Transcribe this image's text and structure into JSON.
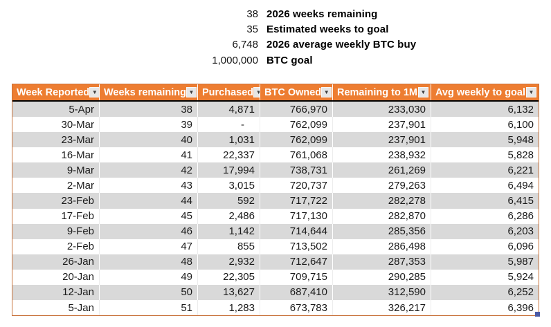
{
  "summary": {
    "rows": [
      {
        "value": "38",
        "label": "2026 weeks remaining"
      },
      {
        "value": "35",
        "label": "Estimated weeks to goal"
      },
      {
        "value": "6,748",
        "label": "2026 average weekly BTC buy"
      },
      {
        "value": "1,000,000",
        "label": "BTC goal"
      }
    ]
  },
  "table": {
    "filter_icon": "▼",
    "columns": [
      {
        "label": "Week Reported"
      },
      {
        "label": "Weeks remaining"
      },
      {
        "label": "Purchased"
      },
      {
        "label": "BTC Owned"
      },
      {
        "label": "Remaining to 1M"
      },
      {
        "label": "Avg weekly to goal"
      }
    ],
    "rows": [
      [
        "5-Apr",
        "38",
        "4,871",
        "766,970",
        "233,030",
        "6,132"
      ],
      [
        "30-Mar",
        "39",
        "-",
        "762,099",
        "237,901",
        "6,100"
      ],
      [
        "23-Mar",
        "40",
        "1,031",
        "762,099",
        "237,901",
        "5,948"
      ],
      [
        "16-Mar",
        "41",
        "22,337",
        "761,068",
        "238,932",
        "5,828"
      ],
      [
        "9-Mar",
        "42",
        "17,994",
        "738,731",
        "261,269",
        "6,221"
      ],
      [
        "2-Mar",
        "43",
        "3,015",
        "720,737",
        "279,263",
        "6,494"
      ],
      [
        "23-Feb",
        "44",
        "592",
        "717,722",
        "282,278",
        "6,415"
      ],
      [
        "17-Feb",
        "45",
        "2,486",
        "717,130",
        "282,870",
        "6,286"
      ],
      [
        "9-Feb",
        "46",
        "1,142",
        "714,644",
        "285,356",
        "6,203"
      ],
      [
        "2-Feb",
        "47",
        "855",
        "713,502",
        "286,498",
        "6,096"
      ],
      [
        "26-Jan",
        "48",
        "2,932",
        "712,647",
        "287,353",
        "5,987"
      ],
      [
        "20-Jan",
        "49",
        "22,305",
        "709,715",
        "290,285",
        "5,924"
      ],
      [
        "12-Jan",
        "50",
        "13,627",
        "687,410",
        "312,590",
        "6,252"
      ],
      [
        "5-Jan",
        "51",
        "1,283",
        "673,783",
        "326,217",
        "6,396"
      ]
    ]
  },
  "colors": {
    "header_bg": "#ED7D31",
    "header_text": "#FFFFFF",
    "band_row": "#D9D9D9",
    "header_underline": "#000000",
    "table_border": "#C8713A",
    "resize_handle": "#4A5AA5"
  }
}
